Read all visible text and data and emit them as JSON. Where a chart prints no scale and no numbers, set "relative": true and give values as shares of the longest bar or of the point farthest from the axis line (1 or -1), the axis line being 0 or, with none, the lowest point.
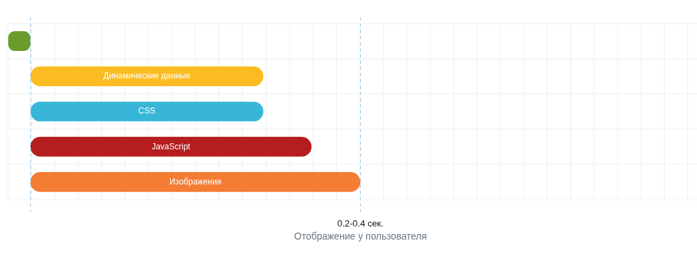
{
  "chart_data": {
    "type": "bar",
    "orientation": "horizontal",
    "relative": true,
    "categories": [
      null,
      "Динамические данные",
      "CSS",
      "JavaScript",
      "Изображения"
    ],
    "values": [
      -0.067,
      0.706,
      0.706,
      0.852,
      1
    ],
    "colors": [
      "#6b9b2b",
      "#fbbc22",
      "#38b6d8",
      "#b51d1f",
      "#f57c33"
    ],
    "ref_lines": [
      {
        "axis": "x",
        "value": 0,
        "color": "#9fcbea",
        "line_style": "dashed"
      },
      {
        "axis": "x",
        "value": 1,
        "label": "0.2-0.4 сек.",
        "color": "#9fcbea",
        "line_style": "dashed"
      }
    ],
    "annotations": [
      "Отображение у пользователя"
    ],
    "grid": true,
    "tick_labels": false,
    "legend": false
  }
}
